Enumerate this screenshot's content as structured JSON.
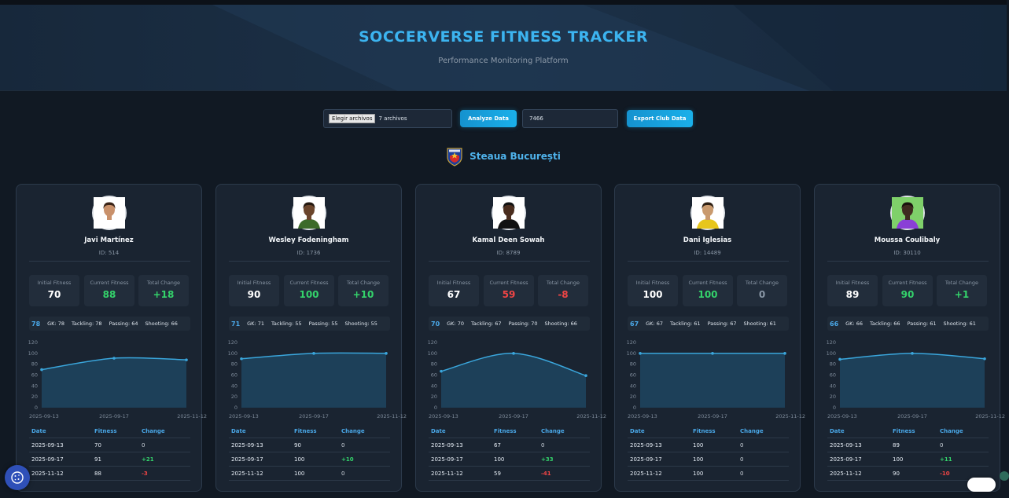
{
  "header": {
    "title": "SOCCERVERSE FITNESS TRACKER",
    "subtitle": "Performance Monitoring Platform"
  },
  "controls": {
    "file_button": "Elegir archivos",
    "file_status": "7 archivos",
    "analyze_label": "Analyze Data",
    "club_id_value": "7466",
    "export_label": "Export Club Data"
  },
  "club": {
    "name": "Steaua București",
    "logo_icon": "club-crest-icon"
  },
  "labels": {
    "initial": "Initial Fitness",
    "current": "Current Fitness",
    "change": "Total Change",
    "col_date": "Date",
    "col_fitness": "Fitness",
    "col_change": "Change"
  },
  "colors": {
    "accent": "#3cb4f0",
    "positive": "#34d36b",
    "negative": "#f04545",
    "neutral": "#cfd6de"
  },
  "chart_data": [
    {
      "type": "area",
      "x": [
        "2025-09-13",
        "2025-09-17",
        "2025-11-12"
      ],
      "values": [
        70,
        91,
        88
      ],
      "ylim": [
        0,
        120
      ],
      "yticks": [
        "120",
        "100",
        "80",
        "60",
        "40",
        "20",
        "0"
      ]
    },
    {
      "type": "area",
      "x": [
        "2025-09-13",
        "2025-09-17",
        "2025-11-12"
      ],
      "values": [
        90,
        100,
        100
      ],
      "ylim": [
        0,
        120
      ],
      "yticks": [
        "120",
        "100",
        "80",
        "60",
        "40",
        "20",
        "0"
      ]
    },
    {
      "type": "area",
      "x": [
        "2025-09-13",
        "2025-09-17",
        "2025-11-12"
      ],
      "values": [
        67,
        100,
        59
      ],
      "ylim": [
        0,
        120
      ],
      "yticks": [
        "120",
        "100",
        "80",
        "60",
        "40",
        "20",
        "0"
      ]
    },
    {
      "type": "area",
      "x": [
        "2025-09-13",
        "2025-09-17",
        "2025-11-12"
      ],
      "values": [
        100,
        100,
        100
      ],
      "ylim": [
        0,
        120
      ],
      "yticks": [
        "120",
        "100",
        "80",
        "60",
        "40",
        "20",
        "0"
      ]
    },
    {
      "type": "area",
      "x": [
        "2025-09-13",
        "2025-09-17",
        "2025-11-12"
      ],
      "values": [
        89,
        100,
        90
      ],
      "ylim": [
        0,
        120
      ],
      "yticks": [
        "120",
        "100",
        "80",
        "60",
        "40",
        "20",
        "0"
      ]
    }
  ],
  "players": [
    {
      "name": "Javi Martínez",
      "id": "ID: 514",
      "initial": "70",
      "current": "88",
      "change": "+18",
      "current_color": "#34d36b",
      "change_color": "#34d36b",
      "overall": "78",
      "gk": "GK: 78",
      "tackling": "Tackling: 78",
      "passing": "Passing: 64",
      "shooting": "Shooting: 66",
      "rows": [
        {
          "date": "2025-09-13",
          "fitness": "70",
          "change": "0",
          "kind": "zero"
        },
        {
          "date": "2025-09-17",
          "fitness": "91",
          "change": "+21",
          "kind": "pos"
        },
        {
          "date": "2025-11-12",
          "fitness": "88",
          "change": "-3",
          "kind": "neg"
        }
      ]
    },
    {
      "name": "Wesley Fodeningham",
      "id": "ID: 1736",
      "initial": "90",
      "current": "100",
      "change": "+10",
      "current_color": "#34d36b",
      "change_color": "#34d36b",
      "overall": "71",
      "gk": "GK: 71",
      "tackling": "Tackling: 55",
      "passing": "Passing: 55",
      "shooting": "Shooting: 55",
      "rows": [
        {
          "date": "2025-09-13",
          "fitness": "90",
          "change": "0",
          "kind": "zero"
        },
        {
          "date": "2025-09-17",
          "fitness": "100",
          "change": "+10",
          "kind": "pos"
        },
        {
          "date": "2025-11-12",
          "fitness": "100",
          "change": "0",
          "kind": "zero"
        }
      ]
    },
    {
      "name": "Kamal Deen Sowah",
      "id": "ID: 8789",
      "initial": "67",
      "current": "59",
      "change": "-8",
      "current_color": "#f04545",
      "change_color": "#f04545",
      "overall": "70",
      "gk": "GK: 70",
      "tackling": "Tackling: 67",
      "passing": "Passing: 70",
      "shooting": "Shooting: 66",
      "rows": [
        {
          "date": "2025-09-13",
          "fitness": "67",
          "change": "0",
          "kind": "zero"
        },
        {
          "date": "2025-09-17",
          "fitness": "100",
          "change": "+33",
          "kind": "pos"
        },
        {
          "date": "2025-11-12",
          "fitness": "59",
          "change": "-41",
          "kind": "neg"
        }
      ]
    },
    {
      "name": "Dani Iglesias",
      "id": "ID: 14489",
      "initial": "100",
      "current": "100",
      "change": "0",
      "current_color": "#34d36b",
      "change_color": "#8a97a6",
      "overall": "67",
      "gk": "GK: 67",
      "tackling": "Tackling: 61",
      "passing": "Passing: 67",
      "shooting": "Shooting: 61",
      "rows": [
        {
          "date": "2025-09-13",
          "fitness": "100",
          "change": "0",
          "kind": "zero"
        },
        {
          "date": "2025-09-17",
          "fitness": "100",
          "change": "0",
          "kind": "zero"
        },
        {
          "date": "2025-11-12",
          "fitness": "100",
          "change": "0",
          "kind": "zero"
        }
      ]
    },
    {
      "name": "Moussa Coulibaly",
      "id": "ID: 30110",
      "initial": "89",
      "current": "90",
      "change": "+1",
      "current_color": "#34d36b",
      "change_color": "#34d36b",
      "overall": "66",
      "gk": "GK: 66",
      "tackling": "Tackling: 66",
      "passing": "Passing: 61",
      "shooting": "Shooting: 61",
      "rows": [
        {
          "date": "2025-09-13",
          "fitness": "89",
          "change": "0",
          "kind": "zero"
        },
        {
          "date": "2025-09-17",
          "fitness": "100",
          "change": "+11",
          "kind": "pos"
        },
        {
          "date": "2025-11-12",
          "fitness": "90",
          "change": "-10",
          "kind": "neg"
        }
      ]
    }
  ],
  "widgets": {
    "cookie_icon": "cookie-icon",
    "toggle_icon": "toggle-switch"
  }
}
